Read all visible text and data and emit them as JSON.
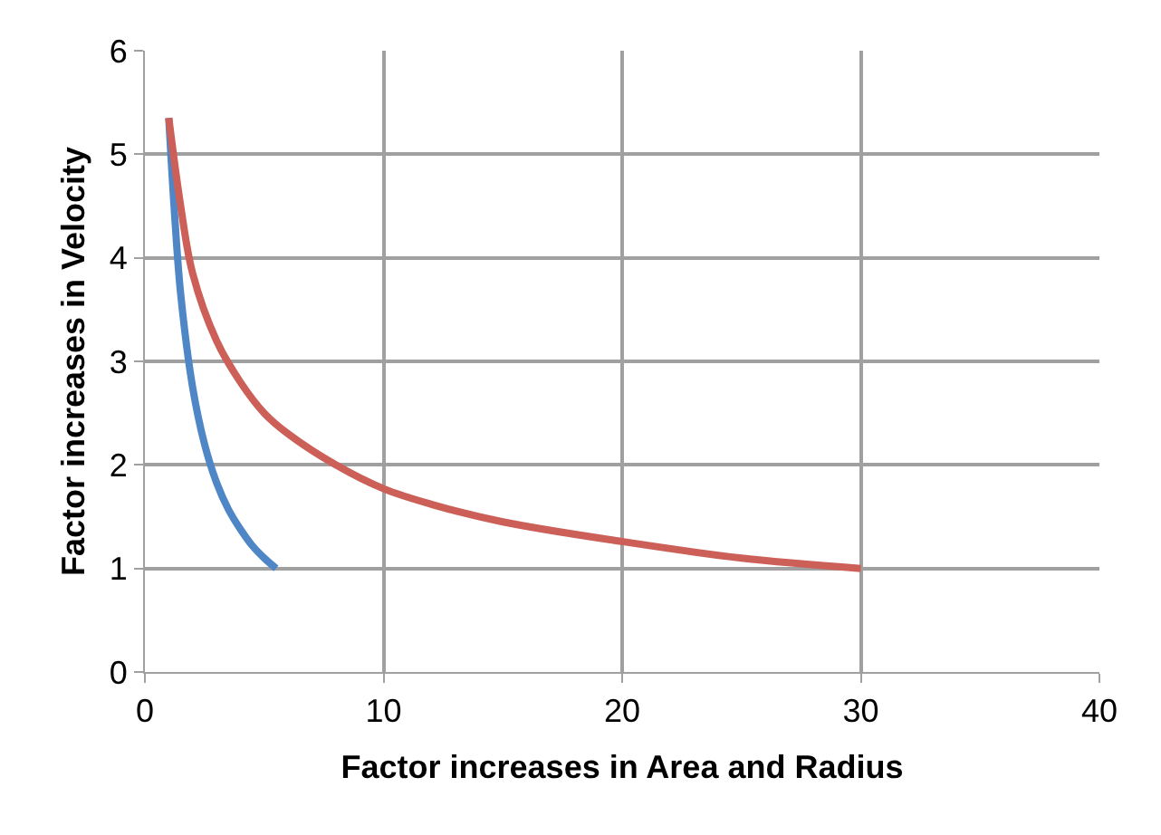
{
  "chart_data": {
    "type": "line",
    "xlabel": "Factor increases in Area and Radius",
    "ylabel": "Factor increases in Velocity",
    "xlim": [
      0,
      40
    ],
    "xticks": [
      0,
      10,
      20,
      30,
      40
    ],
    "ylim": [
      0,
      6
    ],
    "yticks": [
      0,
      1,
      2,
      3,
      4,
      5,
      6
    ],
    "grid": true,
    "marker": "none",
    "line_style": "solid",
    "series": [
      {
        "color": "#4f86c6",
        "x": [
          1,
          1.25,
          1.5,
          2,
          2.5,
          3,
          3.5,
          4,
          4.5,
          5,
          5.5
        ],
        "values": [
          5.35,
          4.4,
          3.65,
          2.75,
          2.2,
          1.83,
          1.57,
          1.38,
          1.22,
          1.1,
          1.0
        ]
      },
      {
        "color": "#cc5f57",
        "x": [
          1,
          1.5,
          2,
          3,
          4,
          5,
          6,
          8,
          10,
          12,
          15,
          20,
          25,
          30
        ],
        "values": [
          5.35,
          4.5,
          3.85,
          3.2,
          2.8,
          2.5,
          2.3,
          2.0,
          1.77,
          1.62,
          1.45,
          1.26,
          1.1,
          1.0
        ]
      }
    ]
  }
}
